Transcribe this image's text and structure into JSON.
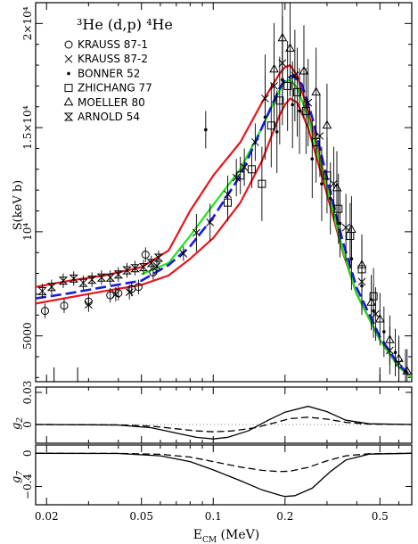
{
  "chart_data": [
    {
      "type": "scatter",
      "panel": "main",
      "title": "³He (d,p) ⁴He",
      "xlabel": "E_CM (MeV)",
      "ylabel": "S(keV b)",
      "xscale": "log",
      "xlim": [
        0.018,
        0.68
      ],
      "ylim": [
        2800,
        21000
      ],
      "yscale": "linear",
      "y_ticks": [
        {
          "value": 5000,
          "label": "5000"
        },
        {
          "value": 10000,
          "label": "10⁴"
        },
        {
          "value": 15000,
          "label": "1.5×10⁴"
        },
        {
          "value": 20000,
          "label": "2×10⁴"
        }
      ],
      "legend_position": "top-left",
      "series": [
        {
          "name": "KRAUSS 87-1",
          "marker": "circle",
          "points": [
            [
              0.0197,
              6200
            ],
            [
              0.0237,
              6450
            ],
            [
              0.03,
              6650
            ],
            [
              0.037,
              6950
            ],
            [
              0.04,
              7050
            ],
            [
              0.0455,
              7250
            ],
            [
              0.0486,
              7350
            ],
            [
              0.052,
              8900
            ],
            [
              0.056,
              8050
            ]
          ]
        },
        {
          "name": "KRAUSS 87-2",
          "marker": "x",
          "points": [
            [
              0.03,
              6500
            ],
            [
              0.039,
              7000
            ],
            [
              0.0445,
              7100
            ],
            [
              0.058,
              8350
            ],
            [
              0.075,
              8950
            ],
            [
              0.085,
              9950
            ],
            [
              0.097,
              10450
            ],
            [
              0.115,
              11800
            ],
            [
              0.125,
              12600
            ],
            [
              0.135,
              13100
            ],
            [
              0.15,
              14300
            ],
            [
              0.165,
              16400
            ],
            [
              0.18,
              17000
            ],
            [
              0.195,
              18100
            ],
            [
              0.22,
              17500
            ],
            [
              0.25,
              16200
            ],
            [
              0.28,
              14600
            ],
            [
              0.32,
              12300
            ],
            [
              0.36,
              10200
            ],
            [
              0.42,
              7600
            ],
            [
              0.48,
              6050
            ],
            [
              0.55,
              4300
            ],
            [
              0.6,
              3700
            ]
          ]
        },
        {
          "name": "BONNER 52",
          "marker": "dot",
          "points": [
            [
              0.093,
              14900
            ],
            [
              0.165,
              15500
            ],
            [
              0.185,
              14800
            ],
            [
              0.195,
              17300
            ],
            [
              0.215,
              16100
            ],
            [
              0.23,
              15800
            ],
            [
              0.26,
              13500
            ],
            [
              0.285,
              12300
            ],
            [
              0.31,
              11600
            ],
            [
              0.34,
              10400
            ],
            [
              0.38,
              8700
            ],
            [
              0.42,
              7400
            ],
            [
              0.47,
              6200
            ],
            [
              0.52,
              5200
            ],
            [
              0.58,
              4200
            ],
            [
              0.64,
              3300
            ]
          ]
        },
        {
          "name": "ZHICHANG 77",
          "marker": "square",
          "points": [
            [
              0.115,
              11400
            ],
            [
              0.13,
              12700
            ],
            [
              0.145,
              13000
            ],
            [
              0.16,
              12300
            ],
            [
              0.175,
              15100
            ],
            [
              0.19,
              16300
            ],
            [
              0.205,
              17000
            ],
            [
              0.225,
              16700
            ],
            [
              0.245,
              15800
            ],
            [
              0.27,
              14300
            ],
            [
              0.3,
              12700
            ],
            [
              0.335,
              11100
            ],
            [
              0.375,
              9800
            ],
            [
              0.42,
              8200
            ],
            [
              0.47,
              6900
            ]
          ]
        },
        {
          "name": "MOELLER 80",
          "marker": "triangle",
          "points": [
            [
              0.18,
              17800
            ],
            [
              0.195,
              19300
            ],
            [
              0.21,
              18800
            ],
            [
              0.24,
              17700
            ],
            [
              0.27,
              16700
            ],
            [
              0.3,
              15100
            ],
            [
              0.33,
              12100
            ],
            [
              0.38,
              10100
            ],
            [
              0.42,
              8400
            ],
            [
              0.46,
              6600
            ],
            [
              0.5,
              5800
            ],
            [
              0.55,
              4800
            ],
            [
              0.6,
              3900
            ],
            [
              0.65,
              3300
            ]
          ]
        },
        {
          "name": "ARNOLD 54",
          "marker": "hourglass",
          "points": [
            [
              0.0192,
              7150
            ],
            [
              0.021,
              7350
            ],
            [
              0.0235,
              7650
            ],
            [
              0.026,
              7750
            ],
            [
              0.0285,
              7550
            ],
            [
              0.031,
              7700
            ],
            [
              0.034,
              7800
            ],
            [
              0.037,
              7800
            ],
            [
              0.04,
              7950
            ],
            [
              0.0435,
              8150
            ],
            [
              0.047,
              8250
            ],
            [
              0.051,
              8300
            ],
            [
              0.055,
              8500
            ],
            [
              0.059,
              8750
            ]
          ]
        }
      ],
      "curves": [
        {
          "style": "solid",
          "color": "#e8151b",
          "points": [
            [
              0.018,
              7350
            ],
            [
              0.025,
              7650
            ],
            [
              0.035,
              7900
            ],
            [
              0.05,
              8300
            ],
            [
              0.065,
              9100
            ],
            [
              0.08,
              11000
            ],
            [
              0.1,
              12700
            ],
            [
              0.13,
              14300
            ],
            [
              0.16,
              16200
            ],
            [
              0.19,
              17600
            ],
            [
              0.2,
              17900
            ],
            [
              0.21,
              18000
            ],
            [
              0.225,
              17500
            ],
            [
              0.25,
              15800
            ],
            [
              0.3,
              12200
            ],
            [
              0.35,
              9100
            ],
            [
              0.4,
              7000
            ],
            [
              0.5,
              4800
            ],
            [
              0.6,
              3500
            ],
            [
              0.68,
              3000
            ]
          ]
        },
        {
          "style": "solid",
          "color": "#e8151b",
          "points": [
            [
              0.018,
              6550
            ],
            [
              0.025,
              6850
            ],
            [
              0.035,
              7150
            ],
            [
              0.05,
              7450
            ],
            [
              0.065,
              7900
            ],
            [
              0.08,
              8700
            ],
            [
              0.1,
              9700
            ],
            [
              0.13,
              11400
            ],
            [
              0.16,
              13400
            ],
            [
              0.19,
              15600
            ],
            [
              0.2,
              16100
            ],
            [
              0.21,
              16400
            ],
            [
              0.225,
              16200
            ],
            [
              0.25,
              15000
            ],
            [
              0.3,
              11800
            ],
            [
              0.35,
              9000
            ],
            [
              0.4,
              7000
            ],
            [
              0.5,
              4800
            ],
            [
              0.6,
              3500
            ],
            [
              0.68,
              3000
            ]
          ]
        },
        {
          "style": "solid",
          "color": "#1ee314",
          "points": [
            [
              0.05,
              7950
            ],
            [
              0.065,
              8500
            ],
            [
              0.08,
              9800
            ],
            [
              0.1,
              11300
            ],
            [
              0.13,
              13000
            ],
            [
              0.16,
              15000
            ],
            [
              0.19,
              16800
            ],
            [
              0.2,
              17200
            ],
            [
              0.21,
              17300
            ],
            [
              0.225,
              16900
            ],
            [
              0.25,
              15500
            ],
            [
              0.3,
              12100
            ],
            [
              0.35,
              9100
            ],
            [
              0.4,
              7000
            ],
            [
              0.5,
              4800
            ],
            [
              0.6,
              3500
            ],
            [
              0.68,
              3000
            ]
          ]
        },
        {
          "style": "dashed",
          "color": "#1919e6",
          "points": [
            [
              0.018,
              6800
            ],
            [
              0.025,
              7050
            ],
            [
              0.035,
              7350
            ],
            [
              0.05,
              7650
            ],
            [
              0.065,
              8400
            ],
            [
              0.08,
              9300
            ],
            [
              0.1,
              10700
            ],
            [
              0.13,
              12700
            ],
            [
              0.16,
              15000
            ],
            [
              0.19,
              16900
            ],
            [
              0.2,
              17300
            ],
            [
              0.215,
              17500
            ],
            [
              0.235,
              17100
            ],
            [
              0.26,
              15500
            ],
            [
              0.3,
              12600
            ],
            [
              0.35,
              9500
            ],
            [
              0.4,
              7300
            ],
            [
              0.5,
              4950
            ],
            [
              0.6,
              3600
            ],
            [
              0.68,
              3050
            ]
          ]
        }
      ],
      "edge_marks_x": [
        0.0215,
        0.027,
        0.5,
        0.6
      ]
    },
    {
      "type": "line",
      "panel": "g2",
      "ylabel": "g₂",
      "xscale": "log",
      "xlim": [
        0.018,
        0.68
      ],
      "ylim": [
        -0.0175,
        0.035
      ],
      "y_ticks": [
        {
          "value": 0.03,
          "label": "0.03"
        },
        {
          "value": 0,
          "label": "0"
        }
      ],
      "curves": [
        {
          "style": "solid",
          "points": [
            [
              0.018,
              0
            ],
            [
              0.04,
              -0.0005
            ],
            [
              0.055,
              -0.003
            ],
            [
              0.07,
              -0.008
            ],
            [
              0.085,
              -0.012
            ],
            [
              0.1,
              -0.0135
            ],
            [
              0.115,
              -0.012
            ],
            [
              0.14,
              -0.006
            ],
            [
              0.17,
              0.004
            ],
            [
              0.2,
              0.0115
            ],
            [
              0.25,
              0.017
            ],
            [
              0.3,
              0.012
            ],
            [
              0.36,
              0.004
            ],
            [
              0.45,
              0.0007
            ],
            [
              0.68,
              0
            ]
          ]
        },
        {
          "style": "dashed",
          "points": [
            [
              0.018,
              0
            ],
            [
              0.04,
              -0.0003
            ],
            [
              0.055,
              -0.0015
            ],
            [
              0.07,
              -0.004
            ],
            [
              0.085,
              -0.006
            ],
            [
              0.1,
              -0.0068
            ],
            [
              0.12,
              -0.006
            ],
            [
              0.15,
              -0.003
            ],
            [
              0.18,
              0.0015
            ],
            [
              0.21,
              0.0055
            ],
            [
              0.25,
              0.0068
            ],
            [
              0.3,
              0.005
            ],
            [
              0.36,
              0.002
            ],
            [
              0.45,
              0.0003
            ],
            [
              0.68,
              0
            ]
          ]
        }
      ]
    },
    {
      "type": "line",
      "panel": "g7",
      "ylabel": "g₇",
      "xscale": "log",
      "xlim": [
        0.018,
        0.68
      ],
      "ylim": [
        -0.62,
        0.1
      ],
      "y_ticks": [
        {
          "value": 0,
          "label": "0"
        },
        {
          "value": -0.4,
          "label": "−0.4"
        }
      ],
      "curves": [
        {
          "style": "solid",
          "points": [
            [
              0.018,
              0
            ],
            [
              0.04,
              -0.002
            ],
            [
              0.06,
              -0.03
            ],
            [
              0.08,
              -0.1
            ],
            [
              0.1,
              -0.2
            ],
            [
              0.13,
              -0.33
            ],
            [
              0.16,
              -0.44
            ],
            [
              0.19,
              -0.505
            ],
            [
              0.2,
              -0.52
            ],
            [
              0.22,
              -0.51
            ],
            [
              0.26,
              -0.42
            ],
            [
              0.31,
              -0.22
            ],
            [
              0.36,
              -0.08
            ],
            [
              0.45,
              -0.01
            ],
            [
              0.68,
              0
            ]
          ]
        },
        {
          "style": "dashed",
          "points": [
            [
              0.018,
              0
            ],
            [
              0.04,
              -0.001
            ],
            [
              0.06,
              -0.012
            ],
            [
              0.08,
              -0.045
            ],
            [
              0.1,
              -0.1
            ],
            [
              0.13,
              -0.165
            ],
            [
              0.16,
              -0.205
            ],
            [
              0.19,
              -0.22
            ],
            [
              0.21,
              -0.215
            ],
            [
              0.25,
              -0.17
            ],
            [
              0.3,
              -0.09
            ],
            [
              0.36,
              -0.03
            ],
            [
              0.45,
              -0.005
            ],
            [
              0.68,
              0
            ]
          ]
        }
      ]
    }
  ],
  "x_ticks": [
    {
      "value": 0.02,
      "label": "0.02"
    },
    {
      "value": 0.05,
      "label": "0.05"
    },
    {
      "value": 0.1,
      "label": "0.1"
    },
    {
      "value": 0.2,
      "label": "0.2"
    },
    {
      "value": 0.5,
      "label": "0.5"
    }
  ],
  "labels": {
    "title_main": "³He (d,p) ⁴He",
    "ylabel_main": "S(keV b)",
    "ylabel_g2_base": "g",
    "ylabel_g2_sub": "2",
    "ylabel_g7_base": "g",
    "ylabel_g7_sub": "7",
    "xlabel_base": "E",
    "xlabel_sub": "CM",
    "xlabel_unit": " (MeV)"
  }
}
